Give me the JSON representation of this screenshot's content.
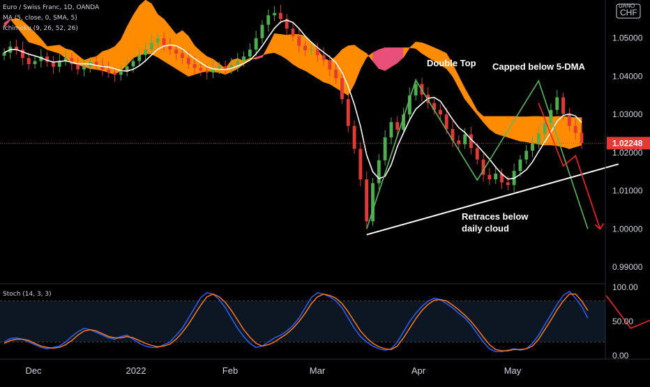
{
  "header": {
    "symbol_line": "Euro / Swiss Franc, 1D, OANDA",
    "ma_line": "MA (5, close, 0, SMA, 5)",
    "ichimoku_line": "Ichimoku (9, 26, 52, 26)",
    "stoch_line": "Stoch (14, 3, 3)",
    "currency_top": "UANO",
    "currency_unit": "CHF"
  },
  "annotations": {
    "double_top": "Double Top",
    "capped": "Capped below 5-DMA",
    "retraces_1": "Retraces below",
    "retraces_2": "daily cloud"
  },
  "colors": {
    "bull": "#4caf50",
    "bear": "#e53935",
    "cloud": "#ff8c00",
    "cloud_alt": "#e8507a",
    "ma": "#ffffff",
    "pattern": "#5cb85c",
    "trend": "#ffffff",
    "arrow": "#ff2222",
    "stoch_k": "#2962ff",
    "stoch_d": "#ff7a1a",
    "last_price_bg": "#e53935"
  },
  "chart_data": [
    {
      "type": "candlestick",
      "title": "Euro / Swiss Franc, 1D, OANDA",
      "y_ticks": [
        "1.05000",
        "1.04000",
        "1.03000",
        "1.02000",
        "1.01000",
        "1.00000",
        "0.99000"
      ],
      "x_ticks": [
        "Dec",
        "2022",
        "Feb",
        "Mar",
        "Apr",
        "May"
      ],
      "last_price": "1.02248",
      "ylim": [
        0.986,
        1.06
      ],
      "close_series": [
        1.0462,
        1.0478,
        1.047,
        1.0448,
        1.0432,
        1.044,
        1.0452,
        1.0438,
        1.0425,
        1.044,
        1.0448,
        1.0432,
        1.0418,
        1.0425,
        1.0438,
        1.043,
        1.0418,
        1.041,
        1.0404,
        1.0412,
        1.0426,
        1.044,
        1.0456,
        1.047,
        1.0488,
        1.05,
        1.0482,
        1.047,
        1.046,
        1.0448,
        1.0432,
        1.0422,
        1.0415,
        1.041,
        1.0418,
        1.0426,
        1.042,
        1.043,
        1.044,
        1.0452,
        1.047,
        1.05,
        1.0535,
        1.056,
        1.0566,
        1.055,
        1.0525,
        1.0505,
        1.048,
        1.0468,
        1.047,
        1.0455,
        1.0442,
        1.0418,
        1.0395,
        1.034,
        1.027,
        1.021,
        1.013,
        1.002,
        1.012,
        1.018,
        1.024,
        1.028,
        1.026,
        1.03,
        1.035,
        1.038,
        1.0352,
        1.033,
        1.0312,
        1.03,
        1.0262,
        1.0232,
        1.0222,
        1.0248,
        1.0212,
        1.0182,
        1.0142,
        1.013,
        1.0145,
        1.0122,
        1.0115,
        1.0152,
        1.0182,
        1.0205,
        1.0225,
        1.025,
        1.0278,
        1.0312,
        1.0345,
        1.0302,
        1.027,
        1.0252,
        1.0225
      ],
      "ma5_label": "MA (5, close, 0, SMA, 5)",
      "cloud_upper": [
        1.0528,
        1.0548,
        1.0552,
        1.0545,
        1.053,
        1.0515,
        1.0498,
        1.0478,
        1.048,
        1.0482,
        1.0472,
        1.0468,
        1.0455,
        1.0442,
        1.0448,
        1.0452,
        1.0465,
        1.047,
        1.0478,
        1.0496,
        1.053,
        1.056,
        1.0585,
        1.06,
        1.059,
        1.0562,
        1.055,
        1.053,
        1.051,
        1.052,
        1.0505,
        1.048,
        1.0465,
        1.0452,
        1.0445,
        1.0433,
        1.042,
        1.0442,
        1.0447,
        1.044,
        1.0448,
        1.0445,
        1.045,
        1.048,
        1.0512,
        1.051,
        1.0508,
        1.051,
        1.051,
        1.0505,
        1.049,
        1.047,
        1.0448,
        1.044,
        1.0452,
        1.047,
        1.048,
        1.0482,
        1.047,
        1.046,
        1.044,
        1.042,
        1.0415,
        1.0425,
        1.0435,
        1.045,
        1.0475,
        1.049,
        1.0488,
        1.0482,
        1.0475,
        1.0468,
        1.046,
        1.0432,
        1.04,
        1.0368,
        1.034,
        1.031,
        1.0295,
        1.0295,
        1.0295,
        1.0295,
        1.0295,
        1.0295,
        1.0294,
        1.0294,
        1.0295,
        1.0295,
        1.0294,
        1.0294,
        1.0295,
        1.0295,
        1.0293,
        1.0292,
        1.0292
      ],
      "cloud_lower": [
        1.054,
        1.055,
        1.053,
        1.051,
        1.049,
        1.0485,
        1.048,
        1.047,
        1.0465,
        1.046,
        1.0448,
        1.0435,
        1.043,
        1.0425,
        1.042,
        1.0418,
        1.0415,
        1.041,
        1.0405,
        1.0415,
        1.043,
        1.0448,
        1.0455,
        1.046,
        1.0458,
        1.045,
        1.044,
        1.043,
        1.042,
        1.041,
        1.04,
        1.0405,
        1.041,
        1.0414,
        1.0412,
        1.041,
        1.0405,
        1.0412,
        1.042,
        1.0432,
        1.0442,
        1.045,
        1.0455,
        1.046,
        1.0462,
        1.0455,
        1.0445,
        1.0432,
        1.0422,
        1.0415,
        1.0405,
        1.0395,
        1.0385,
        1.038,
        1.037,
        1.036,
        1.035,
        1.038,
        1.042,
        1.045,
        1.0462,
        1.047,
        1.0475,
        1.0475,
        1.0475,
        1.0475,
        1.0475,
        1.0473,
        1.046,
        1.045,
        1.044,
        1.043,
        1.042,
        1.04,
        1.037,
        1.034,
        1.032,
        1.03,
        1.028,
        1.0262,
        1.025,
        1.0245,
        1.024,
        1.0235,
        1.023,
        1.0228,
        1.0225,
        1.0222,
        1.022,
        1.022,
        1.0218,
        1.0215,
        1.021,
        1.0215,
        1.022
      ]
    },
    {
      "type": "line",
      "title": "Stoch (14, 3, 3)",
      "y_ticks": [
        "100.00",
        "50.00",
        "0.00"
      ],
      "ylim": [
        0,
        100
      ],
      "levels": [
        80,
        20
      ],
      "series": [
        {
          "name": "%K",
          "values": [
            20,
            25,
            26,
            24,
            20,
            16,
            12,
            10,
            12,
            14,
            20,
            28,
            35,
            40,
            38,
            34,
            30,
            26,
            24,
            28,
            30,
            24,
            18,
            14,
            12,
            12,
            16,
            20,
            30,
            40,
            55,
            70,
            85,
            92,
            90,
            82,
            70,
            55,
            40,
            28,
            18,
            12,
            14,
            20,
            26,
            30,
            36,
            44,
            55,
            70,
            85,
            92,
            90,
            86,
            80,
            70,
            55,
            40,
            28,
            20,
            14,
            10,
            8,
            10,
            20,
            35,
            50,
            62,
            72,
            80,
            84,
            82,
            76,
            70,
            62,
            55,
            45,
            32,
            20,
            10,
            6,
            6,
            8,
            10,
            8,
            10,
            18,
            30,
            45,
            60,
            75,
            88,
            94,
            84,
            72,
            55
          ]
        },
        {
          "name": "%D",
          "values": [
            18,
            22,
            24,
            24,
            22,
            18,
            14,
            12,
            11,
            12,
            16,
            22,
            30,
            36,
            38,
            36,
            32,
            28,
            26,
            26,
            28,
            26,
            22,
            18,
            15,
            13,
            14,
            17,
            24,
            34,
            46,
            60,
            74,
            86,
            90,
            86,
            78,
            66,
            52,
            38,
            27,
            18,
            14,
            16,
            20,
            26,
            32,
            40,
            50,
            62,
            76,
            86,
            90,
            88,
            84,
            76,
            64,
            50,
            36,
            26,
            18,
            13,
            10,
            9,
            14,
            26,
            40,
            54,
            66,
            75,
            81,
            82,
            80,
            74,
            67,
            59,
            50,
            39,
            27,
            16,
            9,
            7,
            7,
            9,
            9,
            10,
            14,
            24,
            38,
            52,
            67,
            80,
            90,
            90,
            80,
            66
          ]
        }
      ]
    }
  ]
}
